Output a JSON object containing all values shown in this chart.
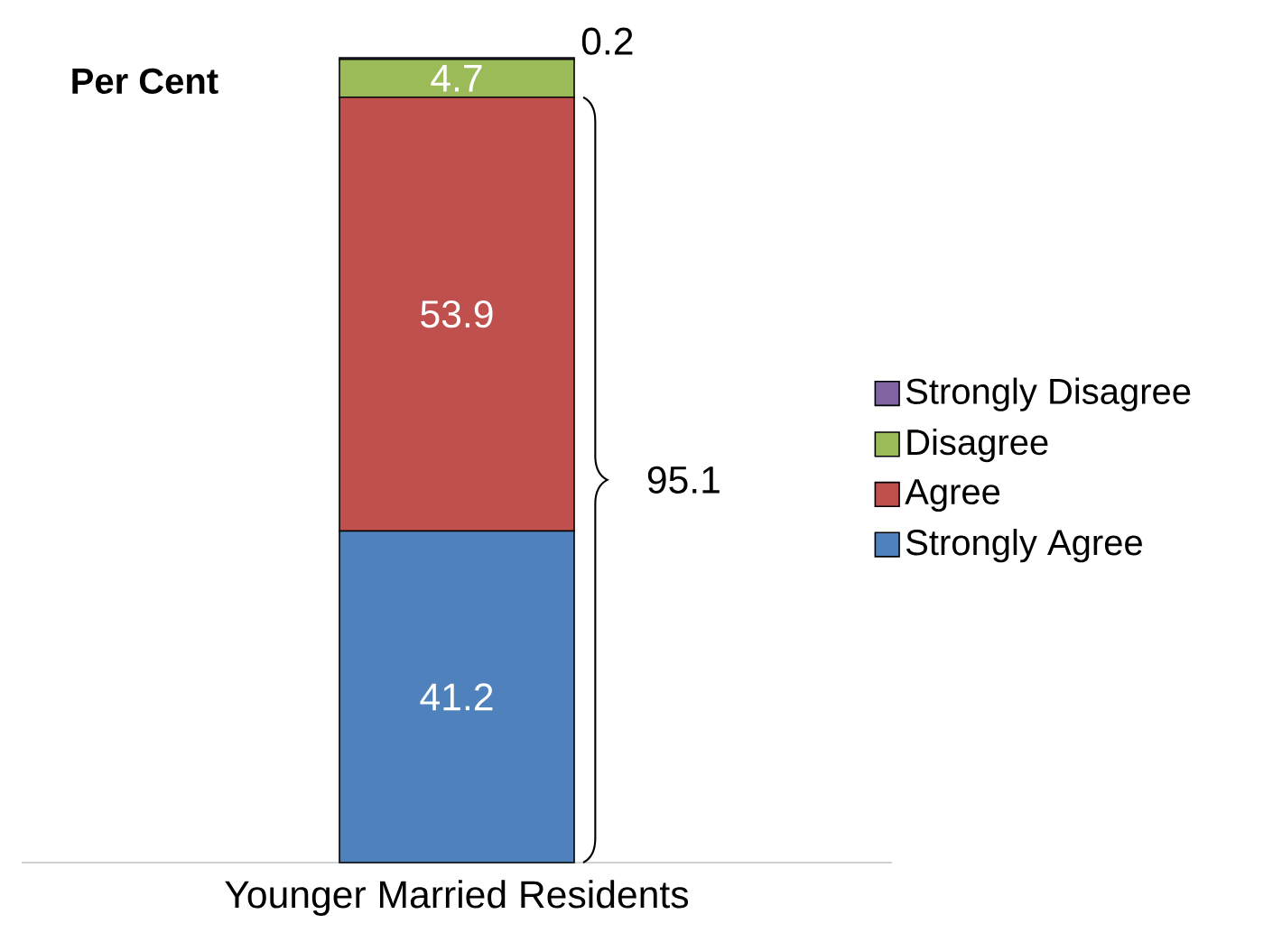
{
  "chart_data": {
    "type": "bar",
    "stacked": true,
    "ylabel": "Per Cent",
    "categories": [
      "Younger Married Residents"
    ],
    "series": [
      {
        "name": "Strongly Agree",
        "color": "#4f81bd",
        "values": [
          41.2
        ]
      },
      {
        "name": "Agree",
        "color": "#c0504d",
        "values": [
          53.9
        ]
      },
      {
        "name": "Disagree",
        "color": "#9bbb59",
        "values": [
          4.7
        ]
      },
      {
        "name": "Strongly Disagree",
        "color": "#8064a2",
        "values": [
          0.2
        ]
      }
    ],
    "data_labels": true,
    "legend": "right",
    "tick_labels": "x",
    "annotations": [
      "95.1"
    ]
  }
}
